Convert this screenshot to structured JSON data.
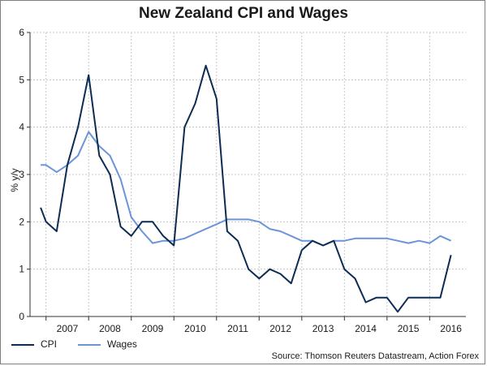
{
  "chart_data": {
    "type": "line",
    "title": "New Zealand CPI and Wages",
    "ylabel": "% y/y",
    "xlabel": "",
    "ylim": [
      0,
      6
    ],
    "yticks": [
      "0",
      "1",
      "2",
      "3",
      "4",
      "5",
      "6"
    ],
    "xticks": [
      "2007",
      "2008",
      "2009",
      "2010",
      "2011",
      "2012",
      "2013",
      "2014",
      "2015",
      "2016"
    ],
    "grid": true,
    "legend_position": "bottom-left",
    "series": [
      {
        "name": "CPI",
        "color": "#0d2c54",
        "x": [
          2006.875,
          2007.0,
          2007.25,
          2007.5,
          2007.75,
          2008.0,
          2008.25,
          2008.5,
          2008.75,
          2009.0,
          2009.25,
          2009.5,
          2009.75,
          2010.0,
          2010.25,
          2010.5,
          2010.75,
          2011.0,
          2011.25,
          2011.5,
          2011.75,
          2012.0,
          2012.25,
          2012.5,
          2012.75,
          2013.0,
          2013.25,
          2013.5,
          2013.75,
          2014.0,
          2014.25,
          2014.5,
          2014.75,
          2015.0,
          2015.25,
          2015.5,
          2015.75,
          2016.0,
          2016.25,
          2016.5
        ],
        "values": [
          2.3,
          2.0,
          1.8,
          3.2,
          4.0,
          5.1,
          3.4,
          3.0,
          1.9,
          1.7,
          2.0,
          2.0,
          1.7,
          1.5,
          4.0,
          4.5,
          5.3,
          4.6,
          1.8,
          1.6,
          1.0,
          0.8,
          1.0,
          0.9,
          0.7,
          1.4,
          1.6,
          1.5,
          1.6,
          1.0,
          0.8,
          0.3,
          0.4,
          0.4,
          0.1,
          0.4,
          0.4,
          0.4,
          0.4,
          1.3
        ]
      },
      {
        "name": "Wages",
        "color": "#6b95d8",
        "x": [
          2006.875,
          2007.0,
          2007.25,
          2007.5,
          2007.75,
          2008.0,
          2008.25,
          2008.5,
          2008.75,
          2009.0,
          2009.25,
          2009.5,
          2009.75,
          2010.0,
          2010.25,
          2010.5,
          2010.75,
          2011.0,
          2011.25,
          2011.5,
          2011.75,
          2012.0,
          2012.25,
          2012.5,
          2012.75,
          2013.0,
          2013.25,
          2013.5,
          2013.75,
          2014.0,
          2014.25,
          2014.5,
          2014.75,
          2015.0,
          2015.25,
          2015.5,
          2015.75,
          2016.0,
          2016.25,
          2016.5
        ],
        "values": [
          3.2,
          3.2,
          3.05,
          3.2,
          3.4,
          3.9,
          3.6,
          3.4,
          2.9,
          2.1,
          1.8,
          1.55,
          1.6,
          1.6,
          1.65,
          1.75,
          1.85,
          1.95,
          2.05,
          2.05,
          2.05,
          2.0,
          1.85,
          1.8,
          1.7,
          1.6,
          1.6,
          1.5,
          1.6,
          1.6,
          1.65,
          1.65,
          1.65,
          1.65,
          1.6,
          1.55,
          1.6,
          1.55,
          1.7,
          1.6
        ]
      }
    ]
  },
  "source": "Source: Thomson Reuters Datastream, Action Forex"
}
